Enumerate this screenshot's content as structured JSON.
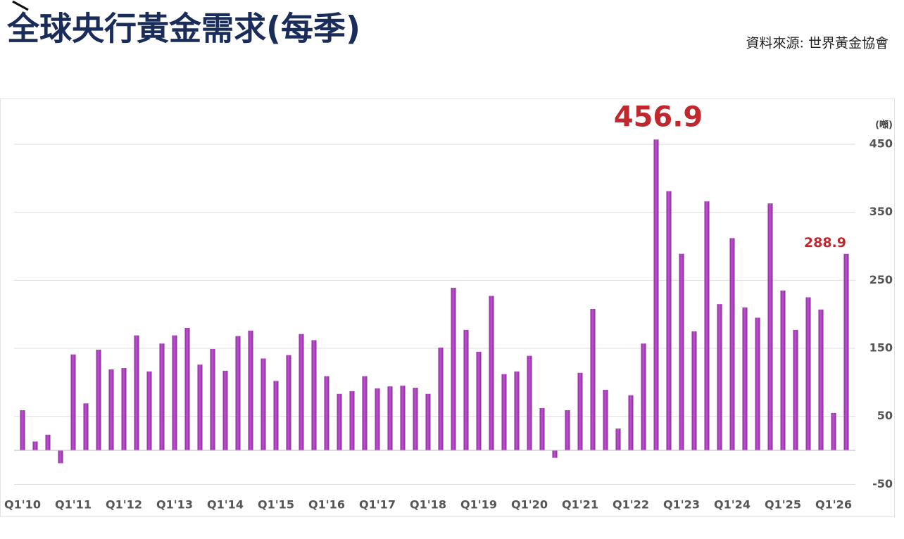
{
  "chart_data": {
    "type": "bar",
    "title": "全球央行黃金需求(每季)",
    "source": "資料來源: 世界黃金協會",
    "y_axis_label": "(噸)",
    "categories": [
      "Q1'10",
      null,
      null,
      null,
      "Q1'11",
      null,
      null,
      null,
      "Q1'12",
      null,
      null,
      null,
      "Q1'13",
      null,
      null,
      null,
      "Q1'14",
      null,
      null,
      null,
      "Q1'15",
      null,
      null,
      null,
      "Q1'16",
      null,
      null,
      null,
      "Q1'17",
      null,
      null,
      null,
      "Q1'18",
      null,
      null,
      null,
      "Q1'19",
      null,
      null,
      null,
      "Q1'20",
      null,
      null,
      null,
      "Q1'21",
      null,
      null,
      null,
      "Q1'22",
      null,
      null,
      null,
      "Q1'23",
      null,
      null,
      null,
      "Q1'24",
      null,
      null,
      null,
      "Q1'25",
      null,
      null,
      null,
      "Q1'26",
      null
    ],
    "values": [
      59,
      13,
      23,
      -19,
      141,
      69,
      148,
      119,
      121,
      169,
      116,
      157,
      169,
      180,
      126,
      149,
      117,
      168,
      176,
      135,
      102,
      140,
      171,
      162,
      109,
      83,
      87,
      109,
      91,
      94,
      95,
      92,
      83,
      151,
      239,
      177,
      145,
      227,
      112,
      116,
      139,
      62,
      -11,
      59,
      114,
      208,
      89,
      32,
      81,
      157,
      456.9,
      381,
      289,
      175,
      366,
      215,
      312,
      210,
      195,
      363,
      235,
      177,
      225,
      207,
      55,
      288.9
    ],
    "labeled_points": [
      50,
      65
    ],
    "color": "#c44fd6",
    "ylim": [
      -60,
      510
    ],
    "yticks": [
      450,
      350,
      250,
      150,
      50,
      -50
    ],
    "grid": true
  }
}
